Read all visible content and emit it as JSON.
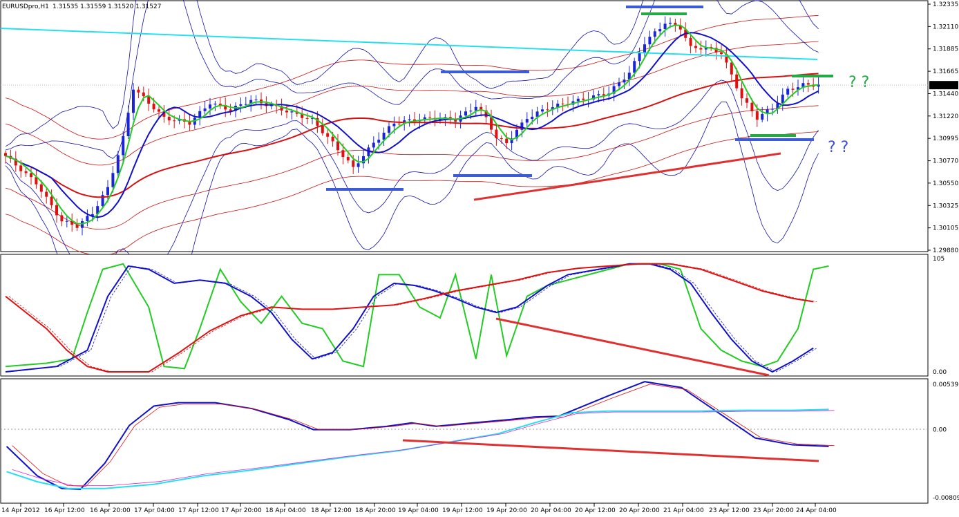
{
  "header": {
    "symbol": "EURUSDpro,H1",
    "ohlc": "1.31535 1.31559 1.31520 1.31527"
  },
  "annotations": {
    "q_upper": "? ?",
    "q_lower": "? ?"
  },
  "colors": {
    "bull": "#1a24d8",
    "bear": "#e01010",
    "ema_fast": "#22cc22",
    "ema_slow": "#1010cc",
    "sma": "#d81010",
    "cyan": "#22e0f0",
    "envelope": "#cc1010",
    "bollinger": "#1010aa",
    "magenta": "#dd22dd"
  },
  "chart_data": [
    {
      "type": "candlestick",
      "panel": "price",
      "ylim": [
        1.2988,
        1.32335
      ],
      "y_ticks": [
        "1.32335",
        "1.32110",
        "1.31885",
        "1.31665",
        "1.31440",
        "1.31220",
        "1.30995",
        "1.30770",
        "1.30550",
        "1.30325",
        "1.30105",
        "1.29880"
      ],
      "current_price": "1.31527",
      "x_tick_labels": [
        "14 Apr 2012",
        "16 Apr 12:00",
        "16 Apr 20:00",
        "17 Apr 04:00",
        "17 Apr 12:00",
        "17 Apr 20:00",
        "18 Apr 04:00",
        "18 Apr 12:00",
        "18 Apr 20:00",
        "19 Apr 04:00",
        "19 Apr 12:00",
        "19 Apr 20:00",
        "20 Apr 04:00",
        "20 Apr 12:00",
        "20 Apr 20:00",
        "21 Apr 04:00",
        "23 Apr 12:00",
        "23 Apr 20:00",
        "24 Apr 04:00"
      ],
      "candle_count": 160,
      "anchors": [
        [
          0,
          1.3082
        ],
        [
          6,
          1.3055
        ],
        [
          11,
          1.3017
        ],
        [
          14,
          1.3012
        ],
        [
          17,
          1.3025
        ],
        [
          20,
          1.305
        ],
        [
          23,
          1.31
        ],
        [
          25,
          1.315
        ],
        [
          28,
          1.3135
        ],
        [
          31,
          1.312
        ],
        [
          36,
          1.3115
        ],
        [
          40,
          1.3135
        ],
        [
          44,
          1.3128
        ],
        [
          48,
          1.3138
        ],
        [
          52,
          1.3132
        ],
        [
          56,
          1.3125
        ],
        [
          60,
          1.3118
        ],
        [
          64,
          1.3095
        ],
        [
          68,
          1.307
        ],
        [
          72,
          1.3095
        ],
        [
          76,
          1.3115
        ],
        [
          80,
          1.3118
        ],
        [
          84,
          1.312
        ],
        [
          88,
          1.3118
        ],
        [
          92,
          1.3132
        ],
        [
          94,
          1.312
        ],
        [
          96,
          1.31
        ],
        [
          98,
          1.3095
        ],
        [
          102,
          1.312
        ],
        [
          106,
          1.313
        ],
        [
          110,
          1.3135
        ],
        [
          114,
          1.314
        ],
        [
          118,
          1.3145
        ],
        [
          122,
          1.3165
        ],
        [
          125,
          1.3195
        ],
        [
          129,
          1.3215
        ],
        [
          132,
          1.321
        ],
        [
          134,
          1.319
        ],
        [
          137,
          1.319
        ],
        [
          140,
          1.3185
        ],
        [
          144,
          1.314
        ],
        [
          147,
          1.312
        ],
        [
          150,
          1.313
        ],
        [
          153,
          1.3148
        ],
        [
          156,
          1.3153
        ],
        [
          159,
          1.3153
        ]
      ]
    },
    {
      "type": "line",
      "panel": "stochastic",
      "ylim": [
        0,
        105
      ],
      "y_ticks": [
        "105",
        "0.00"
      ],
      "series": [
        {
          "color": "#22cc22",
          "points": [
            [
              0,
              5
            ],
            [
              8,
              8
            ],
            [
              13,
              12
            ],
            [
              16,
              55
            ],
            [
              19,
              95
            ],
            [
              23,
              100
            ],
            [
              28,
              60
            ],
            [
              31,
              5
            ],
            [
              35,
              3
            ],
            [
              38,
              40
            ],
            [
              42,
              95
            ],
            [
              46,
              65
            ],
            [
              50,
              45
            ],
            [
              54,
              70
            ],
            [
              58,
              45
            ],
            [
              62,
              40
            ],
            [
              66,
              10
            ],
            [
              70,
              5
            ],
            [
              73,
              90
            ],
            [
              77,
              90
            ],
            [
              81,
              60
            ],
            [
              85,
              50
            ],
            [
              88,
              90
            ],
            [
              92,
              12
            ],
            [
              95,
              90
            ],
            [
              98,
              15
            ],
            [
              102,
              70
            ],
            [
              106,
              80
            ],
            [
              110,
              85
            ],
            [
              114,
              90
            ],
            [
              118,
              95
            ],
            [
              122,
              100
            ],
            [
              128,
              100
            ],
            [
              132,
              95
            ],
            [
              136,
              40
            ],
            [
              140,
              20
            ],
            [
              144,
              10
            ],
            [
              148,
              5
            ],
            [
              151,
              10
            ],
            [
              155,
              40
            ],
            [
              158,
              95
            ],
            [
              161,
              98
            ]
          ]
        },
        {
          "color": "#1010cc",
          "points": [
            [
              0,
              0
            ],
            [
              10,
              5
            ],
            [
              16,
              20
            ],
            [
              20,
              70
            ],
            [
              24,
              98
            ],
            [
              28,
              95
            ],
            [
              33,
              82
            ],
            [
              38,
              85
            ],
            [
              43,
              82
            ],
            [
              48,
              70
            ],
            [
              52,
              55
            ],
            [
              56,
              30
            ],
            [
              60,
              12
            ],
            [
              64,
              18
            ],
            [
              68,
              40
            ],
            [
              72,
              70
            ],
            [
              76,
              82
            ],
            [
              80,
              80
            ],
            [
              84,
              75
            ],
            [
              88,
              68
            ],
            [
              92,
              60
            ],
            [
              96,
              55
            ],
            [
              100,
              60
            ],
            [
              106,
              80
            ],
            [
              110,
              90
            ],
            [
              116,
              95
            ],
            [
              122,
              100
            ],
            [
              126,
              100
            ],
            [
              130,
              95
            ],
            [
              134,
              82
            ],
            [
              138,
              55
            ],
            [
              142,
              30
            ],
            [
              146,
              10
            ],
            [
              150,
              0
            ],
            [
              154,
              10
            ],
            [
              158,
              22
            ]
          ]
        },
        {
          "color": "#e01010",
          "points": [
            [
              0,
              70
            ],
            [
              4,
              55
            ],
            [
              8,
              40
            ],
            [
              12,
              20
            ],
            [
              16,
              5
            ],
            [
              20,
              0
            ],
            [
              28,
              0
            ],
            [
              34,
              18
            ],
            [
              40,
              38
            ],
            [
              46,
              52
            ],
            [
              52,
              60
            ],
            [
              58,
              58
            ],
            [
              64,
              58
            ],
            [
              70,
              60
            ],
            [
              76,
              62
            ],
            [
              82,
              68
            ],
            [
              88,
              75
            ],
            [
              94,
              80
            ],
            [
              100,
              85
            ],
            [
              106,
              92
            ],
            [
              112,
              96
            ],
            [
              118,
              98
            ],
            [
              124,
              100
            ],
            [
              130,
              100
            ],
            [
              136,
              95
            ],
            [
              142,
              85
            ],
            [
              148,
              75
            ],
            [
              154,
              68
            ],
            [
              158,
              65
            ]
          ]
        }
      ],
      "trend_line": [
        [
          718,
          461
        ],
        [
          1113,
          543
        ]
      ]
    },
    {
      "type": "line",
      "panel": "macd",
      "ylim": [
        -0.00809,
        0.00539
      ],
      "y_ticks": [
        "0.00539",
        "0.00",
        "-0.00809"
      ],
      "series": [
        {
          "color": "#1010cc",
          "points": [
            [
              0,
              -0.002
            ],
            [
              5,
              -0.0055
            ],
            [
              9,
              -0.007
            ],
            [
              12,
              -0.0071
            ],
            [
              16,
              -0.004
            ],
            [
              20,
              0.0005
            ],
            [
              24,
              0.0028
            ],
            [
              28,
              0.0032
            ],
            [
              34,
              0.0032
            ],
            [
              40,
              0.0025
            ],
            [
              46,
              0.0012
            ],
            [
              50,
              0.0
            ],
            [
              56,
              0.0
            ],
            [
              62,
              0.0004
            ],
            [
              66,
              0.0008
            ],
            [
              70,
              0.0004
            ],
            [
              76,
              0.0008
            ],
            [
              82,
              0.0012
            ],
            [
              86,
              0.0015
            ],
            [
              90,
              0.0016
            ],
            [
              98,
              0.004
            ],
            [
              104,
              0.0057
            ],
            [
              110,
              0.005
            ],
            [
              116,
              0.002
            ],
            [
              122,
              -0.001
            ],
            [
              128,
              -0.0018
            ],
            [
              134,
              -0.002
            ]
          ]
        },
        {
          "color": "#22e0f0",
          "points": [
            [
              0,
              -0.005
            ],
            [
              5,
              -0.0062
            ],
            [
              10,
              -0.007
            ],
            [
              16,
              -0.007
            ],
            [
              24,
              -0.0065
            ],
            [
              32,
              -0.0055
            ],
            [
              40,
              -0.0048
            ],
            [
              48,
              -0.004
            ],
            [
              56,
              -0.0032
            ],
            [
              64,
              -0.0025
            ],
            [
              72,
              -0.0015
            ],
            [
              80,
              -0.0005
            ],
            [
              86,
              0.0008
            ],
            [
              92,
              0.002
            ],
            [
              98,
              0.0022
            ],
            [
              104,
              0.0022
            ],
            [
              112,
              0.0022
            ],
            [
              120,
              0.0023
            ],
            [
              128,
              0.0023
            ],
            [
              134,
              0.0024
            ]
          ]
        }
      ],
      "trend_lines": [
        [
          [
            583,
            637
          ],
          [
            1185,
            667
          ]
        ]
      ]
    }
  ]
}
